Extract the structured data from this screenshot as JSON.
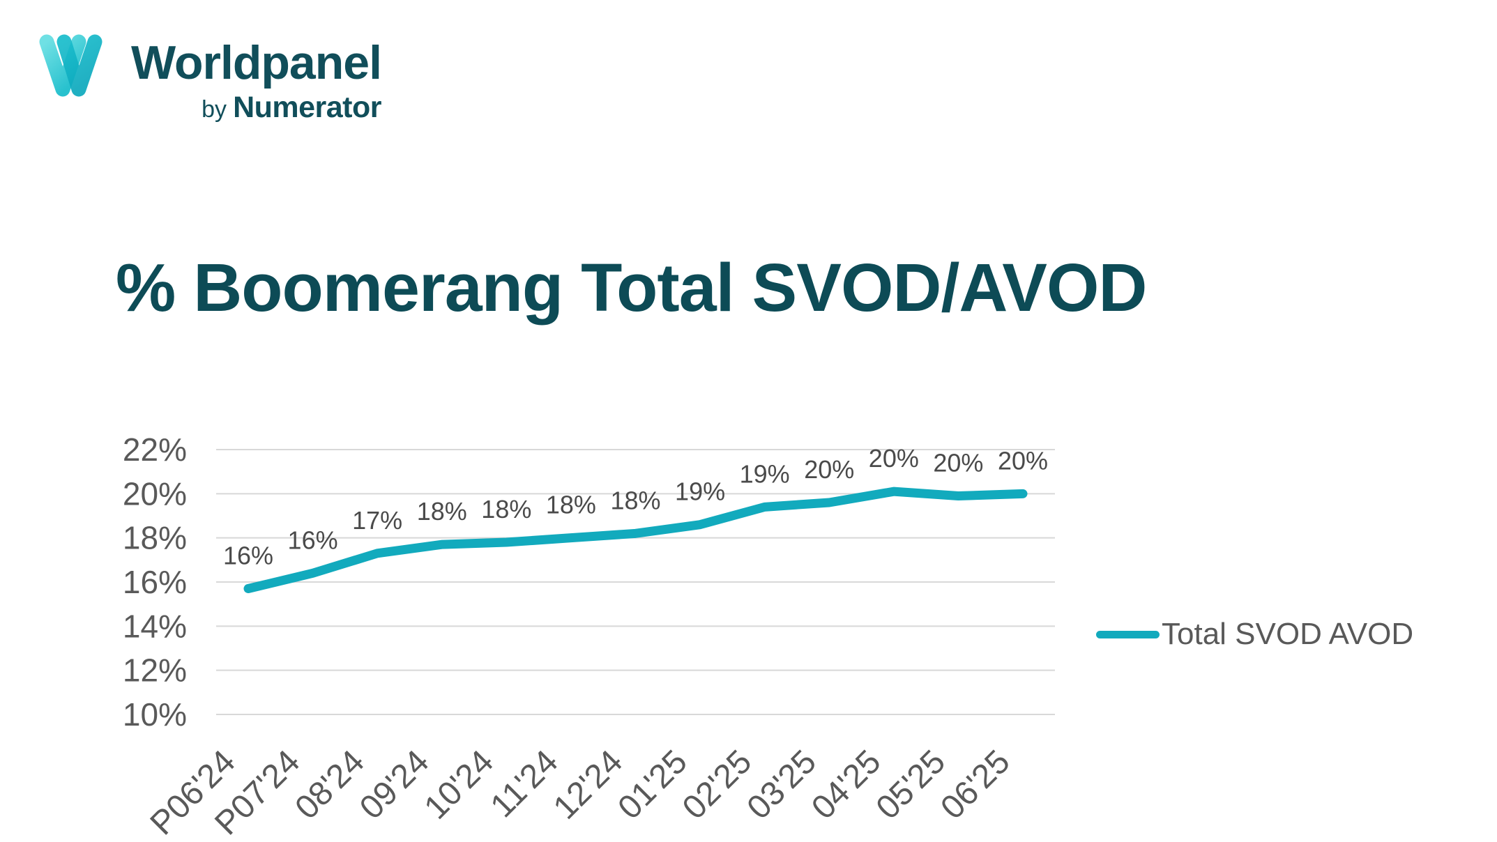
{
  "logo": {
    "brand": "Worldpanel",
    "byline_prefix": "by",
    "byline_brand": "Numerator"
  },
  "title": "% Boomerang Total SVOD/AVOD",
  "legend": {
    "label": "Total SVOD AVOD"
  },
  "colors": {
    "line": "#12AABD",
    "title_text": "#0D4B56",
    "logo_text": "#114E5A",
    "axis_text": "#595959",
    "data_label_text": "#4A4A4A",
    "gridline": "#D8D8D8",
    "logo_mark_light": "#5FD9DF",
    "logo_mark_dark": "#10AFC2"
  },
  "chart_data": {
    "type": "line",
    "title": "% Boomerang Total SVOD/AVOD",
    "categories": [
      "P06'24",
      "P07'24",
      "08'24",
      "09'24",
      "10'24",
      "11'24",
      "12'24",
      "01'25",
      "02'25",
      "03'25",
      "04'25",
      "05'25",
      "06'25"
    ],
    "series": [
      {
        "name": "Total SVOD AVOD",
        "values": [
          15.7,
          16.4,
          17.3,
          17.7,
          17.8,
          18.0,
          18.2,
          18.6,
          19.4,
          19.6,
          20.1,
          19.9,
          20.0
        ],
        "point_labels": [
          "16%",
          "16%",
          "17%",
          "18%",
          "18%",
          "18%",
          "18%",
          "19%",
          "19%",
          "20%",
          "20%",
          "20%",
          "20%"
        ]
      }
    ],
    "xlabel": "",
    "ylabel": "",
    "ylim": [
      10,
      22
    ],
    "y_ticks": [
      "22%",
      "20%",
      "18%",
      "16%",
      "14%",
      "12%",
      "10%"
    ],
    "grid": true,
    "legend_position": "right"
  }
}
